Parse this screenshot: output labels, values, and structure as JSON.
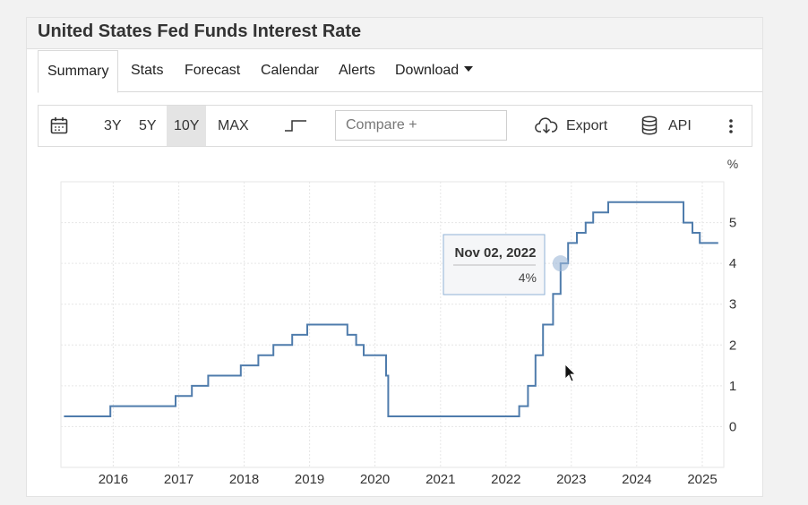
{
  "title": "United States Fed Funds Interest Rate",
  "tabs": [
    {
      "label": "Summary",
      "active": true
    },
    {
      "label": "Stats"
    },
    {
      "label": "Forecast"
    },
    {
      "label": "Calendar"
    },
    {
      "label": "Alerts"
    },
    {
      "label": "Download",
      "dropdown": true
    }
  ],
  "toolbar": {
    "calendar_icon": "calendar-icon",
    "ranges": [
      "3Y",
      "5Y",
      "10Y",
      "MAX"
    ],
    "selected_range": "10Y",
    "step_icon": "step-chart-icon",
    "compare_placeholder": "Compare +",
    "export_label": "Export",
    "export_icon": "cloud-download-icon",
    "api_label": "API",
    "api_icon": "database-icon",
    "more_icon": "more-vertical-icon"
  },
  "tooltip": {
    "date": "Nov 02, 2022",
    "value": "4%"
  },
  "colors": {
    "series": "#4f7cac",
    "grid": "#e6e6e6",
    "selected_range_bg": "#e4e4e4"
  },
  "chart_data": {
    "type": "line",
    "step": true,
    "title": "",
    "xlabel": "",
    "ylabel": "%",
    "ylim": [
      -1,
      6
    ],
    "yticks": [
      0,
      1,
      2,
      3,
      4,
      5
    ],
    "xticks": [
      "2016",
      "2017",
      "2018",
      "2019",
      "2020",
      "2021",
      "2022",
      "2023",
      "2024",
      "2025"
    ],
    "grid": true,
    "series": [
      {
        "x": [
          "2015-04-01",
          "2015-12-16",
          "2016-12-14",
          "2017-03-15",
          "2017-06-14",
          "2017-12-13",
          "2018-03-21",
          "2018-06-13",
          "2018-09-26",
          "2018-12-19",
          "2019-07-31",
          "2019-09-18",
          "2019-10-30",
          "2020-03-03",
          "2020-03-15",
          "2022-03-16",
          "2022-05-04",
          "2022-06-15",
          "2022-07-27",
          "2022-09-21",
          "2022-11-02",
          "2022-12-14",
          "2023-02-01",
          "2023-03-22",
          "2023-05-03",
          "2023-07-26",
          "2024-09-18",
          "2024-11-07",
          "2024-12-18",
          "2025-03-31"
        ],
        "y": [
          0.25,
          0.5,
          0.75,
          1.0,
          1.25,
          1.5,
          1.75,
          2.0,
          2.25,
          2.5,
          2.25,
          2.0,
          1.75,
          1.25,
          0.25,
          0.5,
          1.0,
          1.75,
          2.5,
          3.25,
          4.0,
          4.5,
          4.75,
          5.0,
          5.25,
          5.5,
          5.0,
          4.75,
          4.5,
          4.5
        ]
      }
    ]
  }
}
